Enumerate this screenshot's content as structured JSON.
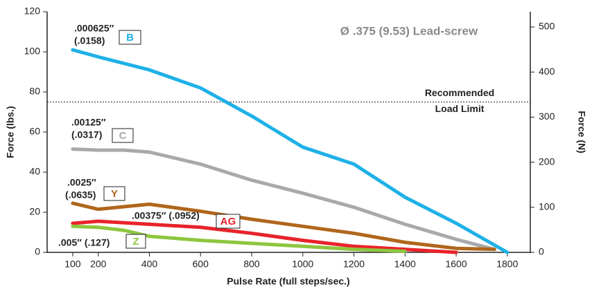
{
  "chart_data": {
    "type": "line",
    "title": "Ø .375 (9.53) Lead-screw",
    "x_label": "Pulse Rate (full steps/sec.)",
    "y_label": "Force (lbs.)",
    "y2_label": "Force (N)",
    "xlim": [
      0,
      1890
    ],
    "xticks": [
      100,
      200,
      400,
      600,
      800,
      1000,
      1200,
      1400,
      1600,
      1800
    ],
    "ylim": [
      0,
      120
    ],
    "yticks": [
      0,
      20,
      40,
      60,
      80,
      100,
      120
    ],
    "y2lim": [
      0,
      533.8
    ],
    "y2ticks": [
      0,
      100,
      200,
      300,
      400,
      500
    ],
    "reference_line": {
      "value": 75,
      "label_lines": [
        "Recommended",
        "Load Limit"
      ]
    },
    "series": [
      {
        "name": "C",
        "color": "#a8a9ab",
        "label_lines": [
          ".00125″",
          "(.0317)"
        ],
        "x": [
          100,
          200,
          300,
          400,
          600,
          800,
          1000,
          1200,
          1400,
          1600,
          1750
        ],
        "values": [
          51.5,
          51,
          51,
          50,
          44,
          36,
          29.5,
          22.5,
          14,
          6.5,
          1.5
        ]
      },
      {
        "name": "Y",
        "color": "#b0661c",
        "label_lines": [
          ".0025″",
          "(.0635)"
        ],
        "x": [
          100,
          200,
          400,
          600,
          800,
          1000,
          1200,
          1400,
          1600,
          1750
        ],
        "values": [
          24.5,
          21.5,
          24,
          20.5,
          16.5,
          13,
          9.5,
          5,
          2,
          1.5
        ]
      },
      {
        "name": "AG",
        "color": "#e8232b",
        "label_lines": [
          ".00375″ (.0952)"
        ],
        "x": [
          100,
          200,
          400,
          600,
          800,
          1000,
          1200,
          1400,
          1600
        ],
        "values": [
          14.5,
          15.5,
          14,
          12.5,
          9.5,
          6,
          3,
          1.5,
          0
        ]
      },
      {
        "name": "Z",
        "color": "#8dc63f",
        "label_lines": [
          ".005″ (.127)"
        ],
        "x": [
          100,
          200,
          300,
          400,
          600,
          800,
          1000,
          1200,
          1400
        ],
        "values": [
          13,
          12.5,
          11,
          8,
          6,
          4.5,
          3,
          1.5,
          0.5
        ]
      },
      {
        "name": "B",
        "color": "#1eb1e7",
        "label_lines": [
          ".000625″",
          "(.0158)"
        ],
        "x": [
          100,
          200,
          400,
          600,
          800,
          1000,
          1200,
          1400,
          1600,
          1800
        ],
        "values": [
          101,
          97.5,
          91,
          82,
          68,
          52.5,
          44,
          27.5,
          14.5,
          0
        ]
      }
    ]
  }
}
